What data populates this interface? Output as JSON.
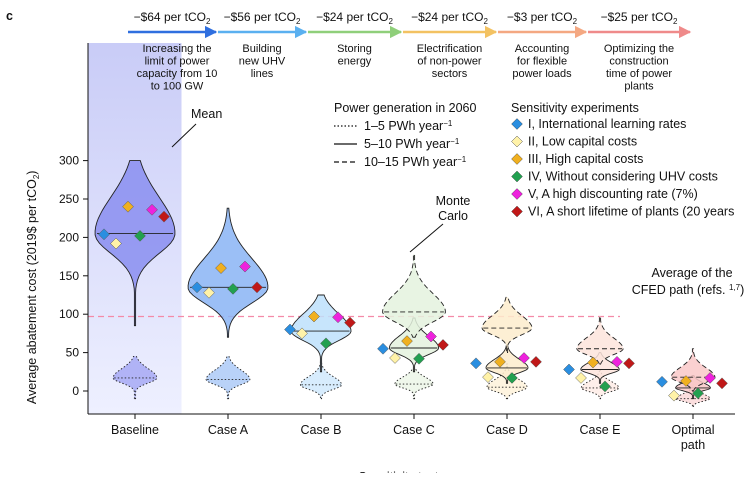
{
  "panel_label": "c",
  "steps": [
    {
      "cost_text": "−$64 per tCO",
      "sub": "2",
      "desc": [
        "Increasing the",
        "limit of power",
        "capacity from 10",
        "to 100 GW"
      ],
      "color": "#2f6fdf"
    },
    {
      "cost_text": "−$56 per tCO",
      "sub": "2",
      "desc": [
        "Building",
        "new UHV",
        "lines"
      ],
      "color": "#5ab0f0"
    },
    {
      "cost_text": "−$24 per tCO",
      "sub": "2",
      "desc": [
        "Storing",
        "energy"
      ],
      "color": "#8fcf7a"
    },
    {
      "cost_text": "−$24 per tCO",
      "sub": "2",
      "desc": [
        "Electrification",
        "of non-power",
        "sectors"
      ],
      "color": "#f3c262"
    },
    {
      "cost_text": "−$3 per tCO",
      "sub": "2",
      "desc": [
        "Accounting",
        "for flexible",
        "power loads"
      ],
      "color": "#f4a882"
    },
    {
      "cost_text": "−$25 per tCO",
      "sub": "2",
      "desc": [
        "Optimizing the",
        "construction",
        "time of power",
        "plants"
      ],
      "color": "#ef8a8a"
    }
  ],
  "annotations": {
    "mean": "Mean",
    "monte_carlo": [
      "Monte",
      "Carlo"
    ],
    "cfed": [
      "Average of the",
      "CFED path (refs. "
    ],
    "cfed_sup": "1,7",
    "cfed_close": ")"
  },
  "power_legend": {
    "title": "Power generation in 2060",
    "items": [
      {
        "label": "1–5 PWh year",
        "sup": "−1",
        "dash": "1.5,2"
      },
      {
        "label": "5–10 PWh year",
        "sup": "−1",
        "dash": ""
      },
      {
        "label": "10–15 PWh year",
        "sup": "−1",
        "dash": "5,3"
      }
    ]
  },
  "sensitivity_legend": {
    "title": "Sensitivity experiments",
    "items": [
      {
        "label": "I, International learning rates",
        "color": "#2a8ee0"
      },
      {
        "label": "II, Low capital costs",
        "color": "#fff2a8"
      },
      {
        "label": "III, High capital costs",
        "color": "#f0b020"
      },
      {
        "label": "IV, Without considering UHV costs",
        "color": "#22a050"
      },
      {
        "label": "V, A high discounting rate (7%)",
        "color": "#ee22dd"
      },
      {
        "label": "VI, A short lifetime of plants (20 years",
        "color": "#c01818"
      }
    ]
  },
  "chart_data": {
    "type": "violin",
    "xlabel": "Sensitivity tests",
    "ylabel": "Average abatement cost (2019$ per tCO",
    "ylabel_sub": "2",
    "ylabel_close": ")",
    "ylim": [
      -30,
      300
    ],
    "yticks": [
      0,
      50,
      100,
      150,
      200,
      250,
      300
    ],
    "cfed_average": 97,
    "categories": [
      "Baseline",
      "Case A",
      "Case B",
      "Case C",
      "Case D",
      "Case E",
      "Optimal path"
    ],
    "category_lines": [
      [
        "Baseline"
      ],
      [
        "Case A"
      ],
      [
        "Case B"
      ],
      [
        "Case C"
      ],
      [
        "Case D"
      ],
      [
        "Case E"
      ],
      [
        "Optimal",
        "path"
      ]
    ],
    "fill_colors": [
      "#8a8ef0",
      "#8ab4f4",
      "#bde0fb",
      "#e4f2de",
      "#fdeccc",
      "#fde4dc",
      "#f9c8c8"
    ],
    "violins": [
      {
        "ranges": [
          [
            -10,
            45,
            17
          ],
          [
            85,
            300,
            205
          ]
        ],
        "medians": [
          17,
          205
        ],
        "dashes": [
          "1.5,2",
          ""
        ]
      },
      {
        "ranges": [
          [
            -10,
            45,
            15
          ],
          [
            70,
            238,
            135
          ]
        ],
        "medians": [
          15,
          135
        ],
        "dashes": [
          "1.5,2",
          ""
        ]
      },
      {
        "ranges": [
          [
            -10,
            38,
            8
          ],
          [
            25,
            125,
            78
          ]
        ],
        "medians": [
          8,
          78
        ],
        "dashes": [
          "1.5,2",
          ""
        ]
      },
      {
        "ranges": [
          [
            -10,
            30,
            9
          ],
          [
            25,
            95,
            56
          ],
          [
            70,
            178,
            103
          ]
        ],
        "medians": [
          9,
          56,
          103
        ],
        "dashes": [
          "1.5,2",
          "",
          "5,3"
        ]
      },
      {
        "ranges": [
          [
            -10,
            35,
            5
          ],
          [
            10,
            60,
            30
          ],
          [
            50,
            122,
            82
          ]
        ],
        "medians": [
          5,
          30,
          82
        ],
        "dashes": [
          "1.5,2",
          "",
          "5,3"
        ]
      },
      {
        "ranges": [
          [
            -10,
            28,
            4
          ],
          [
            10,
            50,
            28
          ],
          [
            35,
            97,
            55
          ]
        ],
        "medians": [
          4,
          28,
          55
        ],
        "dashes": [
          "1.5,2",
          "",
          "5,3"
        ]
      },
      {
        "ranges": [
          [
            -20,
            8,
            -10
          ],
          [
            -10,
            20,
            4
          ],
          [
            0,
            55,
            18
          ]
        ],
        "medians": [
          -10,
          4,
          18
        ],
        "dashes": [
          "1.5,2",
          "",
          "5,3"
        ]
      }
    ],
    "sensitivity_points": [
      [
        204,
        192,
        240,
        202,
        236,
        227
      ],
      [
        135,
        128,
        160,
        133,
        162,
        135
      ],
      [
        80,
        75,
        97,
        62,
        96,
        89
      ],
      [
        55,
        43,
        65,
        42,
        71,
        60
      ],
      [
        36,
        18,
        38,
        17,
        43,
        38
      ],
      [
        28,
        17,
        37,
        6,
        38,
        36
      ],
      [
        12,
        -6,
        13,
        -3,
        17,
        10
      ]
    ]
  }
}
